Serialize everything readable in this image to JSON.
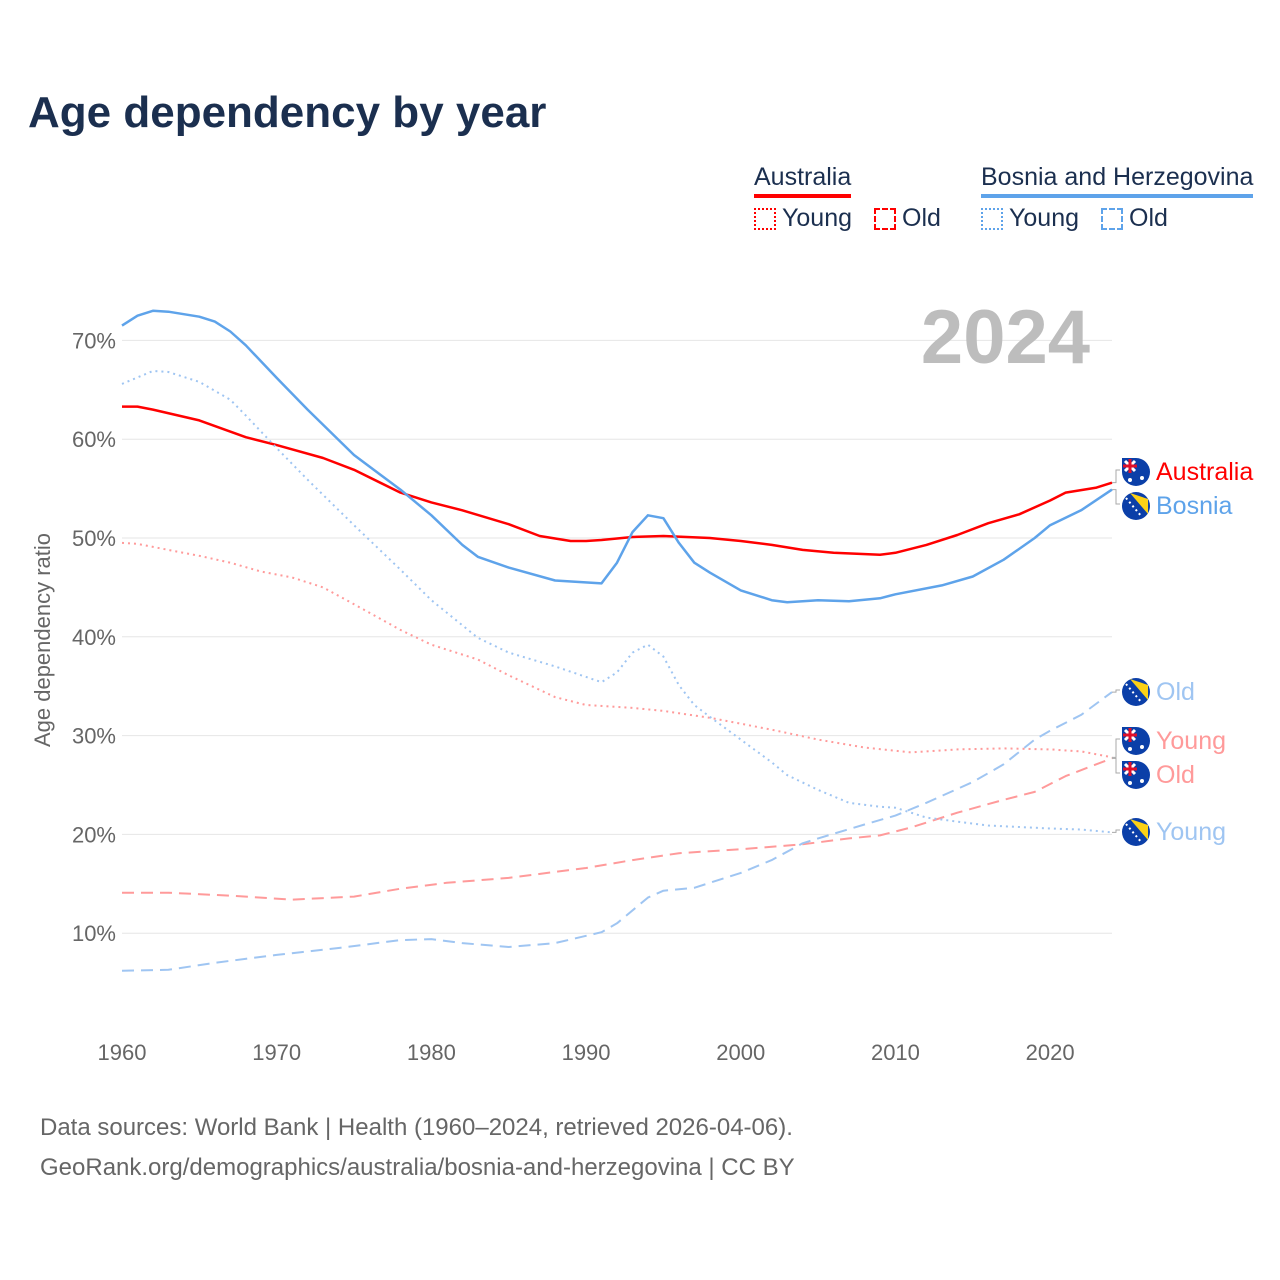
{
  "title": "Age dependency by year",
  "legend": {
    "groups": [
      {
        "name": "Australia",
        "color": "#ff0000",
        "items": [
          "Young",
          "Old"
        ],
        "light": "#ff9a9a"
      },
      {
        "name": "Bosnia and Herzegovina",
        "color": "#5ea3ea",
        "items": [
          "Young",
          "Old"
        ],
        "light": "#9fc5f2"
      }
    ]
  },
  "source": {
    "line1": "Data sources: World Bank | Health (1960–2024, retrieved 2026-04-06).",
    "line2": "GeoRank.org/demographics/australia/bosnia-and-herzegovina | CC BY"
  },
  "chart_data": {
    "type": "line",
    "title": "Age dependency by year",
    "year_label": "2024",
    "xlabel": "",
    "ylabel": "Age dependency ratio",
    "xlim": [
      1960,
      2024
    ],
    "ylim": [
      0,
      75
    ],
    "xticks": [
      1960,
      1970,
      1980,
      1990,
      2000,
      2010,
      2020
    ],
    "yticks": [
      10,
      20,
      30,
      40,
      50,
      60,
      70
    ],
    "ytick_labels": [
      "10%",
      "20%",
      "30%",
      "40%",
      "50%",
      "60%",
      "70%"
    ],
    "series": [
      {
        "name": "Australia",
        "end_label": "Australia",
        "style": "solid",
        "color": "#ff0000",
        "flag": "australia",
        "x": [
          1960,
          1961,
          1962,
          1965,
          1968,
          1970,
          1973,
          1975,
          1978,
          1980,
          1982,
          1985,
          1987,
          1989,
          1990,
          1991,
          1993,
          1995,
          1998,
          2000,
          2002,
          2004,
          2006,
          2009,
          2010,
          2012,
          2014,
          2016,
          2018,
          2020,
          2021,
          2023,
          2024
        ],
        "y": [
          63.3,
          63.3,
          63.0,
          61.9,
          60.2,
          59.4,
          58.1,
          56.9,
          54.6,
          53.6,
          52.8,
          51.4,
          50.2,
          49.7,
          49.7,
          49.8,
          50.1,
          50.2,
          50.0,
          49.7,
          49.3,
          48.8,
          48.5,
          48.3,
          48.5,
          49.3,
          50.3,
          51.5,
          52.4,
          53.8,
          54.6,
          55.1,
          55.6
        ]
      },
      {
        "name": "Bosnia and Herzegovina",
        "end_label": "Bosnia",
        "style": "solid",
        "color": "#5ea3ea",
        "flag": "bosnia",
        "x": [
          1960,
          1961,
          1962,
          1963,
          1965,
          1966,
          1967,
          1968,
          1970,
          1972,
          1975,
          1978,
          1980,
          1982,
          1983,
          1985,
          1988,
          1991,
          1992,
          1993,
          1994,
          1995,
          1996,
          1997,
          1998,
          2000,
          2002,
          2003,
          2005,
          2007,
          2009,
          2010,
          2013,
          2015,
          2017,
          2019,
          2020,
          2022,
          2024
        ],
        "y": [
          71.5,
          72.5,
          73.0,
          72.9,
          72.4,
          71.9,
          70.9,
          69.5,
          66.2,
          63.0,
          58.4,
          54.9,
          52.3,
          49.3,
          48.1,
          47.0,
          45.7,
          45.4,
          47.5,
          50.6,
          52.3,
          52.0,
          49.5,
          47.5,
          46.5,
          44.7,
          43.7,
          43.5,
          43.7,
          43.6,
          43.9,
          44.3,
          45.2,
          46.1,
          47.8,
          50.0,
          51.3,
          52.8,
          54.9
        ]
      },
      {
        "name": "Australia Young",
        "end_label": "Young",
        "style": "dotted",
        "color": "#ff9a9a",
        "flag": "australia",
        "x": [
          1960,
          1961,
          1963,
          1965,
          1967,
          1969,
          1971,
          1973,
          1975,
          1978,
          1980,
          1983,
          1985,
          1988,
          1990,
          1993,
          1995,
          1998,
          2000,
          2002,
          2005,
          2008,
          2011,
          2014,
          2017,
          2020,
          2022,
          2024
        ],
        "y": [
          49.5,
          49.4,
          48.8,
          48.2,
          47.5,
          46.6,
          46.0,
          45.0,
          43.3,
          40.7,
          39.2,
          37.7,
          36.1,
          33.9,
          33.1,
          32.8,
          32.5,
          31.8,
          31.2,
          30.6,
          29.6,
          28.8,
          28.3,
          28.6,
          28.7,
          28.6,
          28.4,
          27.8
        ]
      },
      {
        "name": "Australia Old",
        "end_label": "Old",
        "style": "dashed",
        "color": "#ff9a9a",
        "flag": "australia",
        "x": [
          1960,
          1963,
          1967,
          1971,
          1975,
          1978,
          1981,
          1985,
          1988,
          1990,
          1993,
          1996,
          2000,
          2004,
          2007,
          2009,
          2011,
          2014,
          2017,
          2019,
          2021,
          2024
        ],
        "y": [
          14.1,
          14.1,
          13.8,
          13.4,
          13.7,
          14.5,
          15.1,
          15.6,
          16.2,
          16.6,
          17.4,
          18.1,
          18.5,
          19.0,
          19.6,
          19.9,
          20.7,
          22.2,
          23.5,
          24.3,
          25.9,
          27.7
        ]
      },
      {
        "name": "Bosnia and Herzegovina Young",
        "end_label": "Young",
        "style": "dotted",
        "color": "#9fc5f2",
        "flag": "bosnia",
        "x": [
          1960,
          1962,
          1963,
          1965,
          1967,
          1968,
          1970,
          1972,
          1975,
          1978,
          1980,
          1983,
          1985,
          1988,
          1991,
          1992,
          1993,
          1994,
          1995,
          1996,
          1997,
          1998,
          2000,
          2002,
          2003,
          2005,
          2007,
          2009,
          2010,
          2012,
          2014,
          2016,
          2020,
          2022,
          2024
        ],
        "y": [
          65.6,
          66.9,
          66.8,
          65.8,
          64.0,
          62.4,
          59.1,
          55.9,
          51.3,
          46.8,
          43.7,
          39.9,
          38.4,
          37.0,
          35.4,
          36.4,
          38.4,
          39.2,
          38.0,
          35.1,
          33.1,
          31.9,
          29.6,
          27.3,
          26.0,
          24.5,
          23.2,
          22.8,
          22.7,
          21.7,
          21.3,
          20.9,
          20.6,
          20.5,
          20.2
        ]
      },
      {
        "name": "Bosnia and Herzegovina Old",
        "end_label": "Old",
        "style": "dashed",
        "color": "#9fc5f2",
        "flag": "bosnia",
        "x": [
          1960,
          1963,
          1966,
          1970,
          1974,
          1978,
          1980,
          1982,
          1985,
          1988,
          1991,
          1992,
          1994,
          1995,
          1997,
          2000,
          2002,
          2004,
          2005,
          2008,
          2010,
          2012,
          2015,
          2017,
          2019,
          2020,
          2022,
          2024
        ],
        "y": [
          6.2,
          6.3,
          7.0,
          7.8,
          8.5,
          9.3,
          9.4,
          9.0,
          8.6,
          9.0,
          10.1,
          11.0,
          13.6,
          14.3,
          14.6,
          16.1,
          17.4,
          19.1,
          19.6,
          21.0,
          21.9,
          23.2,
          25.3,
          27.1,
          29.6,
          30.5,
          32.1,
          34.4
        ]
      }
    ]
  }
}
